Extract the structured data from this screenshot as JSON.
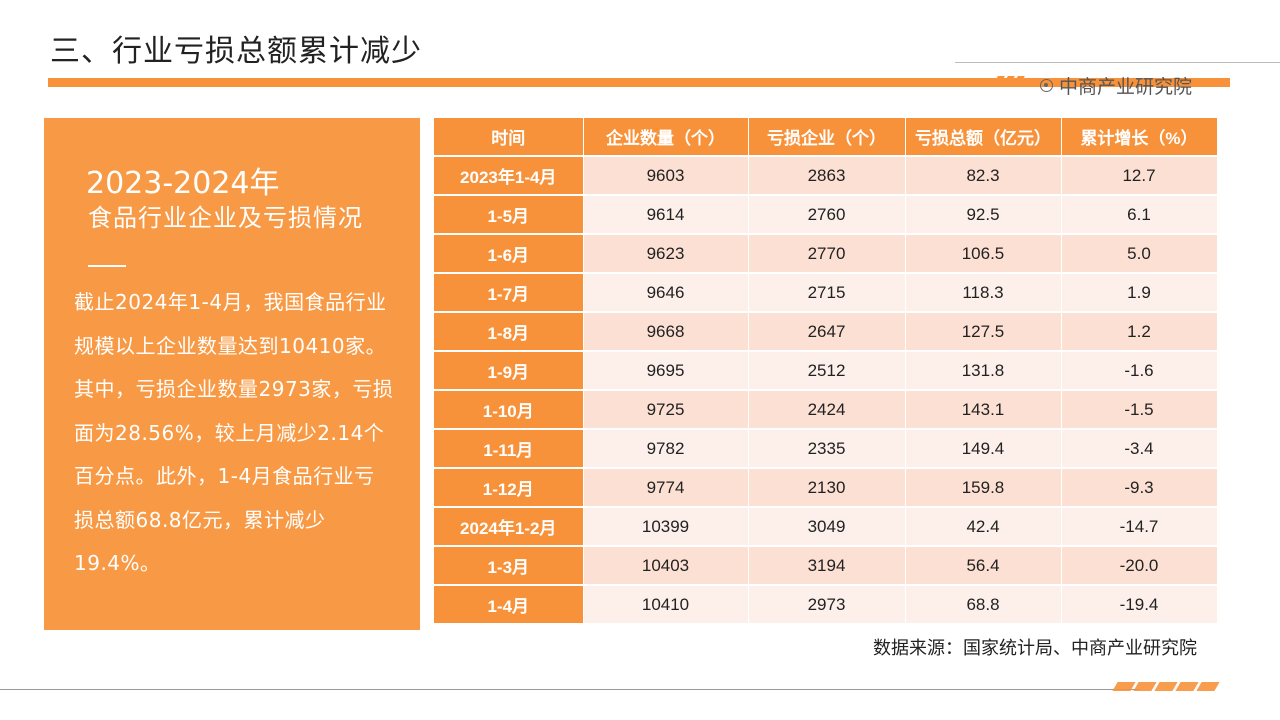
{
  "slide": {
    "title": "三、行业亏损总额累计减少",
    "brand": "中商产业研究院"
  },
  "panel": {
    "heading": "2023-2024年",
    "subheading": "食品行业企业及亏损情况",
    "body": "截止2024年1-4月，我国食品行业规模以上企业数量达到10410家。其中，亏损企业数量2973家，亏损面为28.56%，较上月减少2.14个百分点。此外，1-4月食品行业亏损总额68.8亿元，累计减少19.4%。"
  },
  "table": {
    "headers": [
      "时间",
      "企业数量（个）",
      "亏损企业（个）",
      "亏损总额（亿元）",
      "累计增长（%）"
    ],
    "rows": [
      [
        "2023年1-4月",
        "9603",
        "2863",
        "82.3",
        "12.7"
      ],
      [
        "1-5月",
        "9614",
        "2760",
        "92.5",
        "6.1"
      ],
      [
        "1-6月",
        "9623",
        "2770",
        "106.5",
        "5.0"
      ],
      [
        "1-7月",
        "9646",
        "2715",
        "118.3",
        "1.9"
      ],
      [
        "1-8月",
        "9668",
        "2647",
        "127.5",
        "1.2"
      ],
      [
        "1-9月",
        "9695",
        "2512",
        "131.8",
        "-1.6"
      ],
      [
        "1-10月",
        "9725",
        "2424",
        "143.1",
        "-1.5"
      ],
      [
        "1-11月",
        "9782",
        "2335",
        "149.4",
        "-3.4"
      ],
      [
        "1-12月",
        "9774",
        "2130",
        "159.8",
        "-9.3"
      ],
      [
        "2024年1-2月",
        "10399",
        "3049",
        "42.4",
        "-14.7"
      ],
      [
        "1-3月",
        "10403",
        "3194",
        "56.4",
        "-20.0"
      ],
      [
        "1-4月",
        "10410",
        "2973",
        "68.8",
        "-19.4"
      ]
    ]
  },
  "source": "数据来源：国家统计局、中商产业研究院",
  "colors": {
    "accent": "#f7923a",
    "panel": "#f89a45",
    "row_light": "#fdf0ea",
    "row_dark": "#fde0d4"
  }
}
